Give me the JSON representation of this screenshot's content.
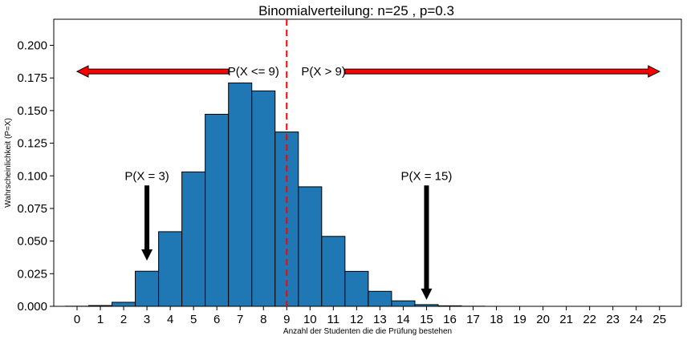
{
  "chart_data": {
    "type": "bar",
    "title": "Binomialverteilung: n=25 , p=0.3",
    "xlabel": "Anzahl der Studenten die die Prüfung bestehen",
    "ylabel": "Wahrscheinlichkeit (P=X)",
    "xlim": [
      -0.5,
      25.5
    ],
    "ylim": [
      0,
      0.22
    ],
    "yticks": [
      "0.000",
      "0.025",
      "0.050",
      "0.075",
      "0.100",
      "0.125",
      "0.150",
      "0.175",
      "0.200"
    ],
    "x": [
      0,
      1,
      2,
      3,
      4,
      5,
      6,
      7,
      8,
      9,
      10,
      11,
      12,
      13,
      14,
      15,
      16,
      17,
      18,
      19,
      20,
      21,
      22,
      23,
      24,
      25
    ],
    "values": [
      0.0001,
      0.0006,
      0.0031,
      0.0269,
      0.0572,
      0.103,
      0.1472,
      0.1712,
      0.1651,
      0.1336,
      0.0916,
      0.0536,
      0.0268,
      0.0115,
      0.0042,
      0.0013,
      0.0004,
      0.0001,
      0.0,
      0.0,
      0.0,
      0.0,
      0.0,
      0.0,
      0.0,
      0.0
    ],
    "bar_color": "#1f77b4",
    "edge_color": "#000000",
    "grid": false,
    "vline": {
      "x": 9,
      "color": "#ff0000",
      "style": "dashed"
    },
    "annotations": {
      "left_range": {
        "text": "P(X <= 9)",
        "arrow_from_x": 6.5,
        "arrow_to_x": 0,
        "y": 0.18,
        "color": "#ff0000"
      },
      "right_range": {
        "text": "P(X > 9)",
        "arrow_from_x": 11.5,
        "arrow_to_x": 25,
        "y": 0.18,
        "color": "#ff0000"
      },
      "point_a": {
        "text": "P(X = 3)",
        "x": 3,
        "text_y": 0.1,
        "arrow_tip_y": 0.035
      },
      "point_b": {
        "text": "P(X = 15)",
        "x": 15,
        "text_y": 0.1,
        "arrow_tip_y": 0.005
      }
    }
  }
}
